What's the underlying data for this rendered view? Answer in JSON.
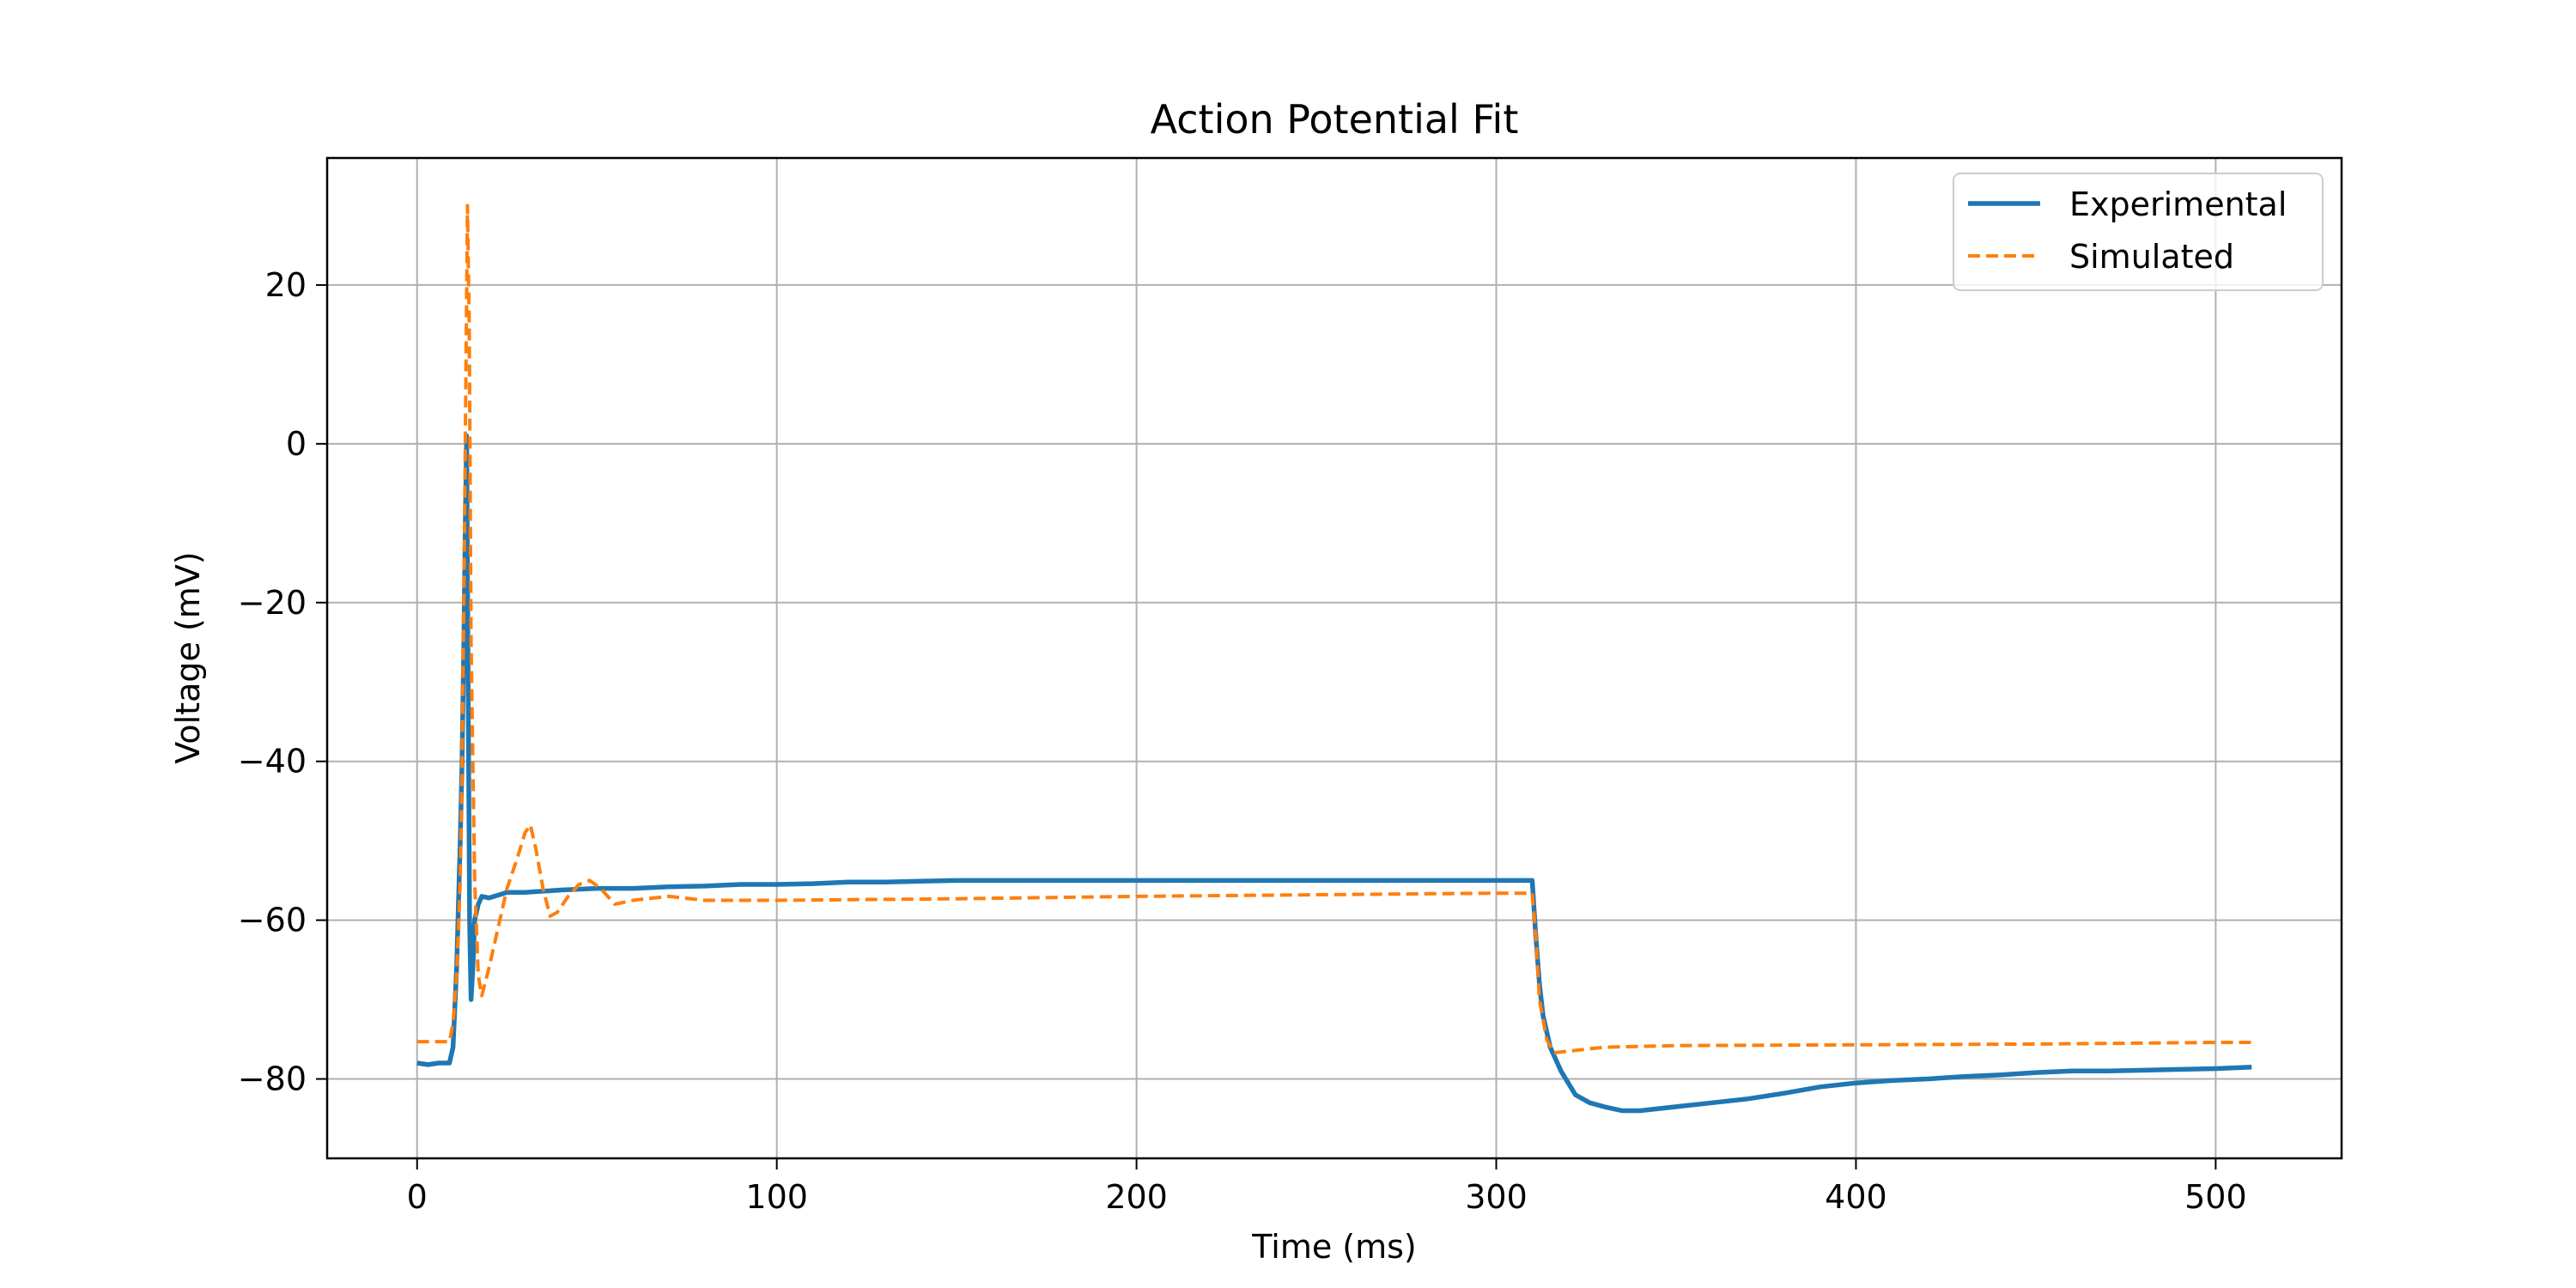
{
  "chart_data": {
    "type": "line",
    "title": "Action Potential Fit",
    "xlabel": "Time (ms)",
    "ylabel": "Voltage (mV)",
    "xlim": [
      -25,
      535
    ],
    "ylim": [
      -90,
      36
    ],
    "xticks": [
      0,
      100,
      200,
      300,
      400,
      500
    ],
    "yticks": [
      -80,
      -60,
      -40,
      -20,
      0,
      20
    ],
    "xtick_labels": [
      "0",
      "100",
      "200",
      "300",
      "400",
      "500"
    ],
    "ytick_labels": [
      "−80",
      "−60",
      "−40",
      "−20",
      "0",
      "20"
    ],
    "grid": true,
    "legend_position": "top-right",
    "series": [
      {
        "name": "Experimental",
        "color": "#1f77b4",
        "style": "solid",
        "x": [
          0,
          3,
          6,
          9,
          10,
          11,
          12,
          12.5,
          13,
          13.4,
          13.8,
          14.2,
          14.6,
          15,
          15.5,
          16,
          17,
          18,
          20,
          25,
          30,
          40,
          50,
          60,
          70,
          80,
          90,
          100,
          110,
          120,
          130,
          140,
          150,
          160,
          170,
          180,
          190,
          200,
          210,
          220,
          230,
          240,
          250,
          260,
          270,
          280,
          290,
          300,
          305,
          310,
          311,
          312,
          313,
          315,
          318,
          322,
          326,
          330,
          335,
          340,
          350,
          360,
          370,
          380,
          390,
          400,
          410,
          420,
          430,
          440,
          450,
          460,
          470,
          480,
          490,
          500,
          510
        ],
        "y": [
          -78,
          -78.2,
          -78,
          -78,
          -76,
          -66,
          -50,
          -40,
          -25,
          -10,
          1,
          -30,
          -60,
          -70,
          -66,
          -60,
          -58,
          -57,
          -57.2,
          -56.5,
          -56.5,
          -56.2,
          -56,
          -56,
          -55.8,
          -55.7,
          -55.5,
          -55.5,
          -55.4,
          -55.2,
          -55.2,
          -55.1,
          -55,
          -55,
          -55,
          -55,
          -55,
          -55,
          -55,
          -55,
          -55,
          -55,
          -55,
          -55,
          -55,
          -55,
          -55,
          -55,
          -55,
          -55,
          -62,
          -68,
          -72,
          -76,
          -79,
          -82,
          -83,
          -83.5,
          -84,
          -84,
          -83.5,
          -83,
          -82.5,
          -81.8,
          -81,
          -80.5,
          -80.2,
          -80,
          -79.7,
          -79.5,
          -79.2,
          -79,
          -79,
          -78.9,
          -78.8,
          -78.7,
          -78.5
        ]
      },
      {
        "name": "Simulated",
        "color": "#ff7f0e",
        "style": "dashed",
        "x": [
          0,
          5,
          9,
          10,
          11,
          12,
          12.5,
          13,
          13.5,
          14,
          14.5,
          15,
          16,
          17,
          18,
          20,
          22,
          25,
          28,
          30,
          31.5,
          33,
          35,
          37,
          39,
          42,
          45,
          48,
          51,
          55,
          60,
          70,
          80,
          90,
          100,
          150,
          200,
          250,
          300,
          310,
          311,
          312,
          314,
          316,
          320,
          330,
          350,
          400,
          450,
          500,
          510
        ],
        "y": [
          -75.3,
          -75.3,
          -75.3,
          -73,
          -67,
          -55,
          -40,
          -20,
          5,
          30,
          15,
          -25,
          -55,
          -67,
          -69.5,
          -66,
          -62,
          -56,
          -52,
          -49,
          -48,
          -51,
          -56,
          -59.5,
          -59,
          -57,
          -55.5,
          -55,
          -56,
          -58,
          -57.5,
          -57,
          -57.5,
          -57.5,
          -57.5,
          -57.3,
          -57,
          -56.8,
          -56.6,
          -56.6,
          -62,
          -70,
          -75,
          -76.7,
          -76.5,
          -76,
          -75.8,
          -75.7,
          -75.6,
          -75.4,
          -75.4
        ]
      }
    ]
  }
}
